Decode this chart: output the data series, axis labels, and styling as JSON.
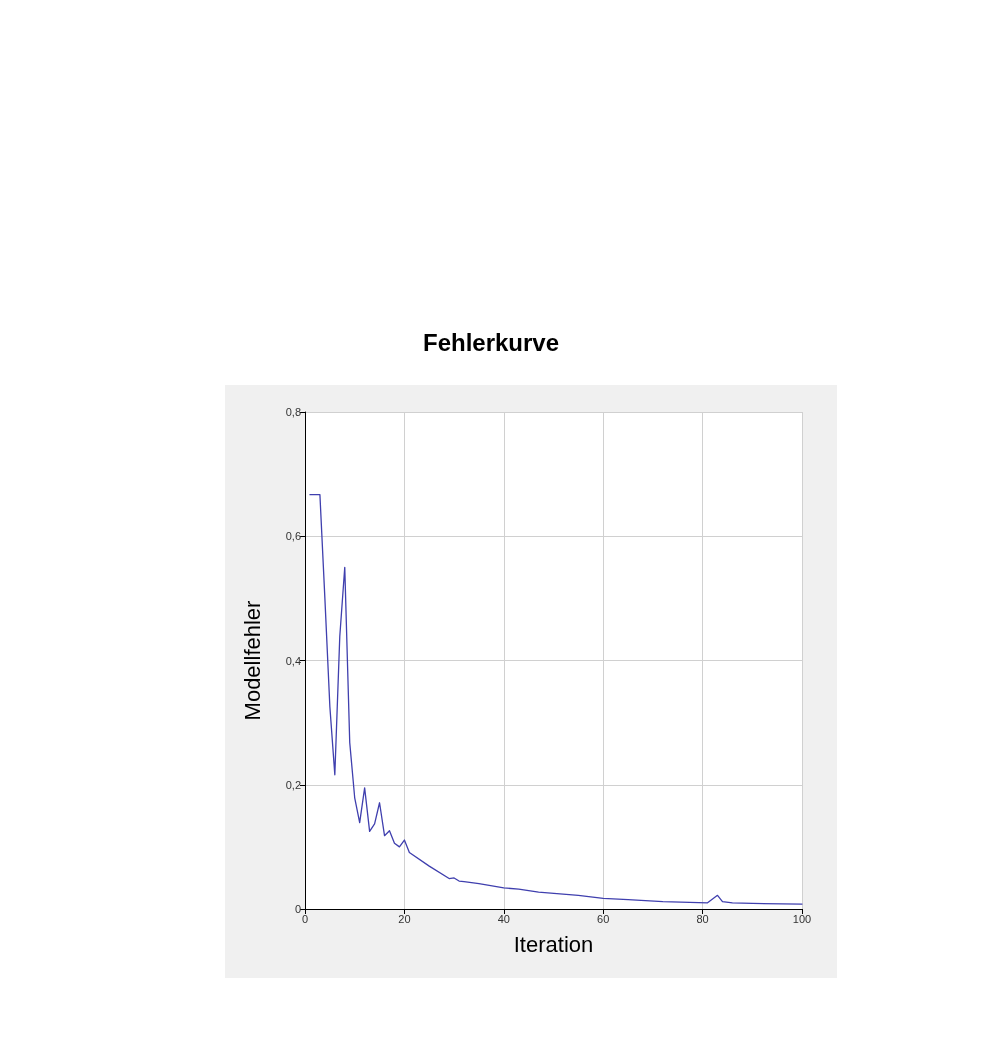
{
  "chart_data": {
    "type": "line",
    "title": "Fehlerkurve",
    "xlabel": "Iteration",
    "ylabel": "Modellfehler",
    "x": [
      1,
      2,
      3,
      4,
      5,
      6,
      7,
      8,
      9,
      10,
      11,
      12,
      13,
      14,
      15,
      16,
      17,
      18,
      19,
      20,
      21,
      25,
      29,
      30,
      31,
      32,
      35,
      40,
      43,
      47,
      55,
      60,
      65,
      72,
      81,
      83,
      84,
      86,
      90,
      100
    ],
    "series": [
      {
        "color": "#3f3fae",
        "values": [
          0.667,
          0.667,
          0.667,
          0.5,
          0.326,
          0.216,
          0.439,
          0.55,
          0.268,
          0.179,
          0.139,
          0.195,
          0.125,
          0.137,
          0.171,
          0.118,
          0.126,
          0.106,
          0.1,
          0.111,
          0.091,
          0.069,
          0.049,
          0.05,
          0.045,
          0.044,
          0.041,
          0.034,
          0.032,
          0.027,
          0.022,
          0.017,
          0.015,
          0.012,
          0.01,
          0.022,
          0.012,
          0.01,
          0.009,
          0.008
        ]
      }
    ],
    "xlim": [
      0,
      100
    ],
    "xticks": [
      0,
      20,
      40,
      60,
      80,
      100
    ],
    "ylim": [
      0,
      0.8
    ],
    "yticks": [
      {
        "value": 0,
        "label": "0"
      },
      {
        "value": 0.2,
        "label": "0,2"
      },
      {
        "value": 0.4,
        "label": "0,4"
      },
      {
        "value": 0.6,
        "label": "0,6"
      },
      {
        "value": 0.8,
        "label": "0,8"
      }
    ],
    "grid": true,
    "marker": "none",
    "line_style": "solid"
  }
}
